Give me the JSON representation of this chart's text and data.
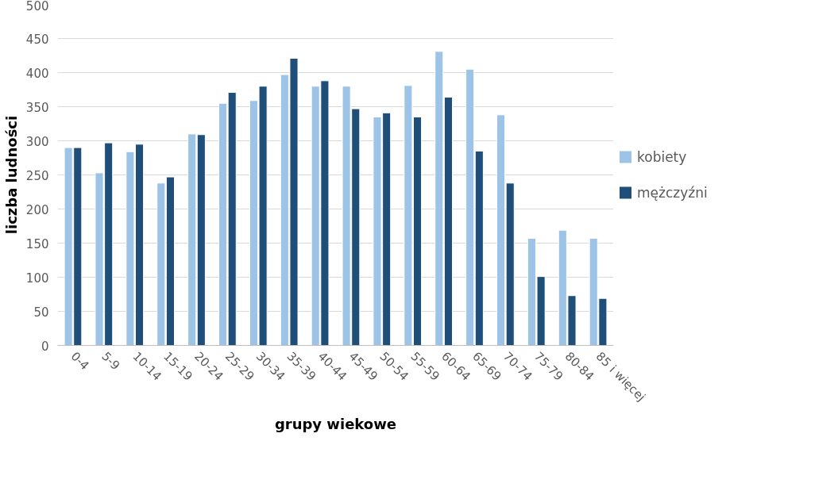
{
  "chart_data": {
    "type": "bar",
    "xlabel": "grupy wiekowe",
    "ylabel": "liczba ludności",
    "categories": [
      "0-4",
      "5-9",
      "10-14",
      "15-19",
      "20-24",
      "25-29",
      "30-34",
      "35-39",
      "40-44",
      "45-49",
      "50-54",
      "55-59",
      "60-64",
      "65-69",
      "70-74",
      "75-79",
      "80-84",
      "85 i więcej"
    ],
    "series": [
      {
        "name": "kobiety",
        "color": "#9dc3e6",
        "values": [
          290,
          253,
          284,
          238,
          310,
          355,
          359,
          397,
          380,
          380,
          335,
          381,
          431,
          405,
          338,
          157,
          169,
          157
        ]
      },
      {
        "name": "mężczyźni",
        "color": "#1f4e79",
        "values": [
          290,
          297,
          295,
          247,
          309,
          371,
          380,
          421,
          388,
          347,
          341,
          335,
          364,
          285,
          238,
          101,
          73,
          69
        ]
      }
    ],
    "ylim": [
      0,
      500
    ],
    "yticks": [
      0,
      50,
      100,
      150,
      200,
      250,
      300,
      350,
      400,
      450,
      500
    ],
    "grid": "y",
    "legend": "right"
  }
}
